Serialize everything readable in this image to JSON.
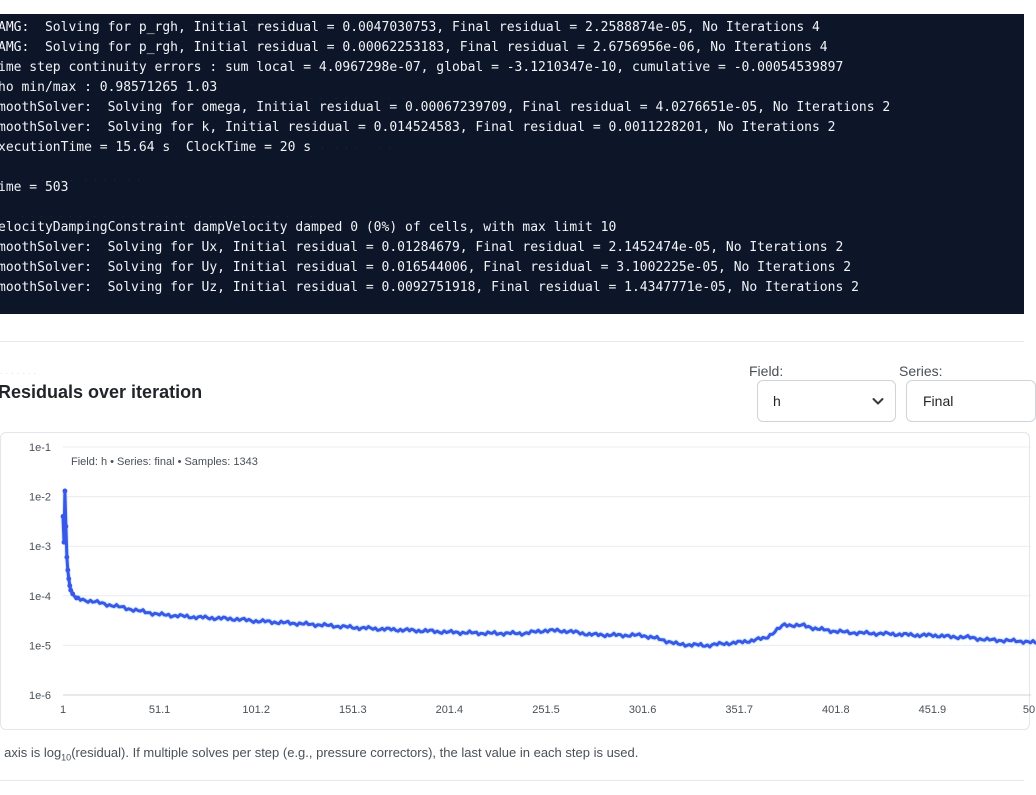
{
  "terminal": {
    "lines": [
      "AMG:  Solving for p_rgh, Initial residual = 0.0047030753, Final residual = 2.2588874e-05, No Iterations 4",
      "AMG:  Solving for p_rgh, Initial residual = 0.00062253183, Final residual = 2.6756956e-06, No Iterations 4",
      "ime step continuity errors : sum local = 4.0967298e-07, global = -3.1210347e-10, cumulative = -0.00054539897",
      "ho min/max : 0.98571265 1.03",
      "moothSolver:  Solving for omega, Initial residual = 0.00067239709, Final residual = 4.0276651e-05, No Iterations 2",
      "moothSolver:  Solving for k, Initial residual = 0.014524583, Final residual = 0.0011228201, No Iterations 2",
      "xecutionTime = 15.64 s  ClockTime = 20 s",
      "",
      "ime = 503",
      "",
      "elocityDampingConstraint dampVelocity damped 0 (0%) of cells, with max limit 10",
      "moothSolver:  Solving for Ux, Initial residual = 0.01284679, Final residual = 2.1452474e-05, No Iterations 2",
      "moothSolver:  Solving for Uy, Initial residual = 0.016544006, Final residual = 3.1002225e-05, No Iterations 2",
      "moothSolver:  Solving for Uz, Initial residual = 0.0092751918, Final residual = 1.4347771e-05, No Iterations 2"
    ]
  },
  "chart_card": {
    "title": "Residuals over iteration",
    "field_label": "Field:",
    "field_value": "h",
    "series_label": "Series:",
    "series_value": "Final",
    "caption": "Field: h  •  Series: final  •  Samples: 1343",
    "note_prefix": "' axis is log",
    "note_sub": "10",
    "note_suffix": "(residual). If multiple solves per step (e.g., pressure correctors), the last value in each step is used."
  },
  "chart_data": {
    "type": "line",
    "title": "",
    "xlabel": "",
    "ylabel": "",
    "y_scale": "log",
    "ylim": [
      1e-06,
      0.1
    ],
    "xlim": [
      1,
      510
    ],
    "y_tick_labels": [
      "1e-1",
      "1e-2",
      "1e-3",
      "1e-4",
      "1e-5",
      "1e-6"
    ],
    "x_tick_labels": [
      "1",
      "51.1",
      "101.2",
      "151.3",
      "201.4",
      "251.5",
      "301.6",
      "351.7",
      "401.8",
      "451.9",
      "50"
    ],
    "grid": true,
    "legend": "none",
    "series": [
      {
        "color": "#3a57e8",
        "x": [
          1,
          1.5,
          2,
          2.5,
          3,
          3.5,
          4,
          4.5,
          5,
          6,
          8,
          10,
          14,
          20,
          30,
          40,
          51,
          70,
          90,
          101,
          120,
          140,
          151,
          170,
          190,
          201,
          220,
          240,
          251,
          262,
          275,
          290,
          301,
          310,
          320,
          335,
          345,
          352,
          365,
          375,
          385,
          392,
          400,
          410,
          420,
          430,
          445,
          452,
          460,
          470,
          480,
          490,
          500,
          510
        ],
        "y": [
          0.004,
          0.0012,
          0.013,
          0.0025,
          0.0006,
          0.00033,
          0.00022,
          0.00016,
          0.00013,
          0.00011,
          9e-05,
          8.5e-05,
          8e-05,
          7.2e-05,
          6e-05,
          5e-05,
          4.2e-05,
          3.7e-05,
          3.4e-05,
          3.1e-05,
          2.8e-05,
          2.5e-05,
          2.3e-05,
          2.1e-05,
          1.95e-05,
          1.85e-05,
          1.75e-05,
          1.75e-05,
          2e-05,
          1.95e-05,
          1.65e-05,
          1.6e-05,
          1.6e-05,
          1.35e-05,
          1.05e-05,
          1e-05,
          1.1e-05,
          1.15e-05,
          1.4e-05,
          2.6e-05,
          2.5e-05,
          2.15e-05,
          1.95e-05,
          1.8e-05,
          1.75e-05,
          1.7e-05,
          1.6e-05,
          1.6e-05,
          1.5e-05,
          1.45e-05,
          1.3e-05,
          1.25e-05,
          1.2e-05,
          1.05e-05
        ]
      }
    ]
  }
}
